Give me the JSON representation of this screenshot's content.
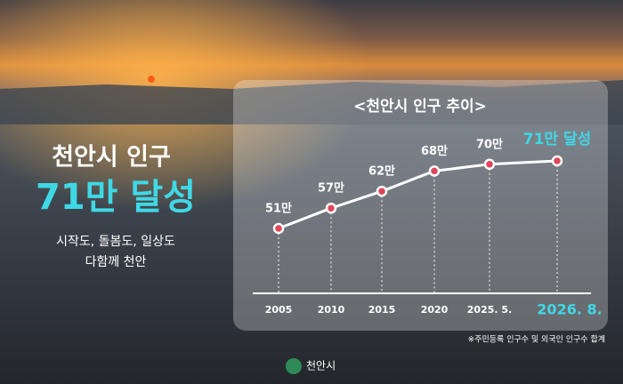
{
  "headline": {
    "line1": "천안시 인구",
    "line2": "71만 달성",
    "slogan1": "시작도, 돌봄도, 일상도",
    "slogan2": "다함께 천안"
  },
  "chart_data": {
    "type": "line",
    "title": "<천안시 인구 추이>",
    "categories": [
      "2005",
      "2010",
      "2015",
      "2020",
      "2025. 5.",
      "2026. 8."
    ],
    "values": [
      51,
      57,
      62,
      68,
      70,
      71
    ],
    "value_labels": [
      "51만",
      "57만",
      "62만",
      "68만",
      "70만",
      "71만 달성"
    ],
    "color": "#ffffff",
    "highlight_color": "#3fd8e6"
  },
  "footnote": "※주민등록 인구수 및 외국인 인구수 합계",
  "logo": "천안시"
}
